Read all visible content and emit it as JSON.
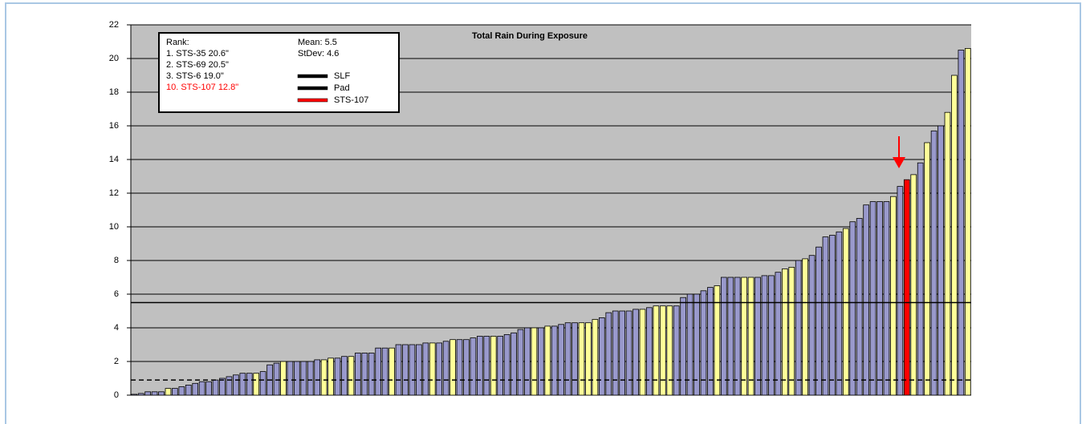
{
  "chart_data": {
    "type": "bar",
    "title": "Total Rain During Exposure",
    "categories": [
      null,
      null,
      null,
      null,
      null,
      null,
      null,
      null,
      null,
      null,
      null,
      null,
      null,
      null,
      null,
      null,
      null,
      null,
      null,
      null,
      null,
      null,
      null,
      null,
      null,
      null,
      null,
      null,
      null,
      null,
      null,
      null,
      null,
      null,
      null,
      null,
      null,
      null,
      null,
      null,
      null,
      null,
      null,
      null,
      null,
      null,
      null,
      null,
      null,
      null,
      null,
      null,
      null,
      null,
      null,
      null,
      null,
      null,
      null,
      null,
      null,
      null,
      null,
      null,
      null,
      null,
      null,
      null,
      null,
      null,
      null,
      null,
      null,
      null,
      null,
      null,
      null,
      null,
      null,
      null,
      null,
      null,
      null,
      null,
      null,
      null,
      null,
      null,
      null,
      null,
      null,
      null,
      null,
      null,
      null,
      null,
      null,
      null,
      null,
      null,
      null,
      null,
      null,
      null,
      null,
      null,
      null,
      null,
      null,
      null,
      null,
      null,
      null,
      null,
      null,
      null,
      null,
      null,
      null,
      null,
      null,
      null,
      null,
      null
    ],
    "values": [
      0.05,
      0.1,
      0.2,
      0.2,
      0.2,
      0.4,
      0.4,
      0.5,
      0.6,
      0.7,
      0.8,
      0.8,
      0.9,
      1.0,
      1.1,
      1.2,
      1.3,
      1.3,
      1.3,
      1.4,
      1.8,
      1.9,
      2.0,
      2.0,
      2.0,
      2.0,
      2.0,
      2.1,
      2.1,
      2.2,
      2.2,
      2.3,
      2.3,
      2.5,
      2.5,
      2.5,
      2.8,
      2.8,
      2.8,
      3.0,
      3.0,
      3.0,
      3.0,
      3.1,
      3.1,
      3.1,
      3.2,
      3.3,
      3.3,
      3.3,
      3.4,
      3.5,
      3.5,
      3.5,
      3.5,
      3.6,
      3.7,
      3.9,
      4.0,
      4.0,
      4.0,
      4.1,
      4.1,
      4.2,
      4.3,
      4.3,
      4.3,
      4.3,
      4.5,
      4.6,
      4.9,
      5.0,
      5.0,
      5.0,
      5.1,
      5.1,
      5.2,
      5.3,
      5.3,
      5.3,
      5.3,
      5.8,
      6.0,
      6.0,
      6.2,
      6.4,
      6.5,
      7.0,
      7.0,
      7.0,
      7.0,
      7.0,
      7.0,
      7.1,
      7.1,
      7.3,
      7.5,
      7.6,
      8.0,
      8.1,
      8.3,
      8.8,
      9.4,
      9.5,
      9.7,
      9.9,
      10.3,
      10.5,
      11.3,
      11.5,
      11.5,
      11.5,
      11.8,
      12.4,
      12.8,
      13.1,
      13.8,
      15.0,
      15.7,
      16.0,
      16.8,
      19.0,
      20.5,
      20.6
    ],
    "colors": [
      "#9999cc",
      "#9999cc",
      "#9999cc",
      "#9999cc",
      "#9999cc",
      "#ffff99",
      "#9999cc",
      "#9999cc",
      "#9999cc",
      "#9999cc",
      "#9999cc",
      "#9999cc",
      "#9999cc",
      "#9999cc",
      "#9999cc",
      "#9999cc",
      "#9999cc",
      "#9999cc",
      "#ffff99",
      "#9999cc",
      "#9999cc",
      "#9999cc",
      "#ffff99",
      "#9999cc",
      "#9999cc",
      "#9999cc",
      "#9999cc",
      "#9999cc",
      "#ffff99",
      "#ffff99",
      "#9999cc",
      "#9999cc",
      "#ffff99",
      "#9999cc",
      "#9999cc",
      "#9999cc",
      "#9999cc",
      "#9999cc",
      "#ffff99",
      "#9999cc",
      "#9999cc",
      "#9999cc",
      "#9999cc",
      "#9999cc",
      "#ffff99",
      "#9999cc",
      "#9999cc",
      "#ffff99",
      "#9999cc",
      "#9999cc",
      "#9999cc",
      "#9999cc",
      "#9999cc",
      "#ffff99",
      "#9999cc",
      "#9999cc",
      "#9999cc",
      "#9999cc",
      "#9999cc",
      "#ffff99",
      "#9999cc",
      "#ffff99",
      "#9999cc",
      "#9999cc",
      "#9999cc",
      "#9999cc",
      "#ffff99",
      "#ffff99",
      "#ffff99",
      "#9999cc",
      "#9999cc",
      "#9999cc",
      "#9999cc",
      "#9999cc",
      "#9999cc",
      "#ffff99",
      "#9999cc",
      "#ffff99",
      "#ffff99",
      "#ffff99",
      "#9999cc",
      "#9999cc",
      "#9999cc",
      "#9999cc",
      "#9999cc",
      "#9999cc",
      "#ffff99",
      "#9999cc",
      "#9999cc",
      "#9999cc",
      "#ffff99",
      "#ffff99",
      "#9999cc",
      "#9999cc",
      "#9999cc",
      "#9999cc",
      "#ffff99",
      "#ffff99",
      "#9999cc",
      "#ffff99",
      "#9999cc",
      "#9999cc",
      "#9999cc",
      "#9999cc",
      "#9999cc",
      "#ffff99",
      "#9999cc",
      "#9999cc",
      "#9999cc",
      "#9999cc",
      "#9999cc",
      "#9999cc",
      "#ffff99",
      "#9999cc",
      "#ff0000",
      "#ffff99",
      "#9999cc",
      "#ffff99",
      "#9999cc",
      "#9999cc",
      "#ffff99",
      "#ffff99",
      "#9999cc",
      "#ffff99"
    ],
    "ylim": [
      0,
      22
    ],
    "yticks": [
      0,
      2,
      4,
      6,
      8,
      10,
      12,
      14,
      16,
      18,
      20,
      22
    ],
    "grid": true,
    "reference_lines": [
      {
        "value": 5.5,
        "style": "solid"
      },
      {
        "value": 0.9,
        "style": "dashed"
      }
    ],
    "legend": {
      "rank_title": "Rank:",
      "ranks": [
        {
          "text": "1. STS-35   20.6\"",
          "color": "#000000"
        },
        {
          "text": "2. STS-69   20.5\"",
          "color": "#000000"
        },
        {
          "text": "3. STS-6     19.0\"",
          "color": "#000000"
        },
        {
          "text": "10. STS-107  12.8\"",
          "color": "#ff0000"
        }
      ],
      "mean": "Mean: 5.5",
      "stdev": "StDev: 4.6",
      "entries": [
        {
          "name": "SLF",
          "color": "#000000"
        },
        {
          "name": "Pad",
          "color": "#000000"
        },
        {
          "name": "STS-107",
          "color": "#ff0000"
        }
      ]
    }
  }
}
